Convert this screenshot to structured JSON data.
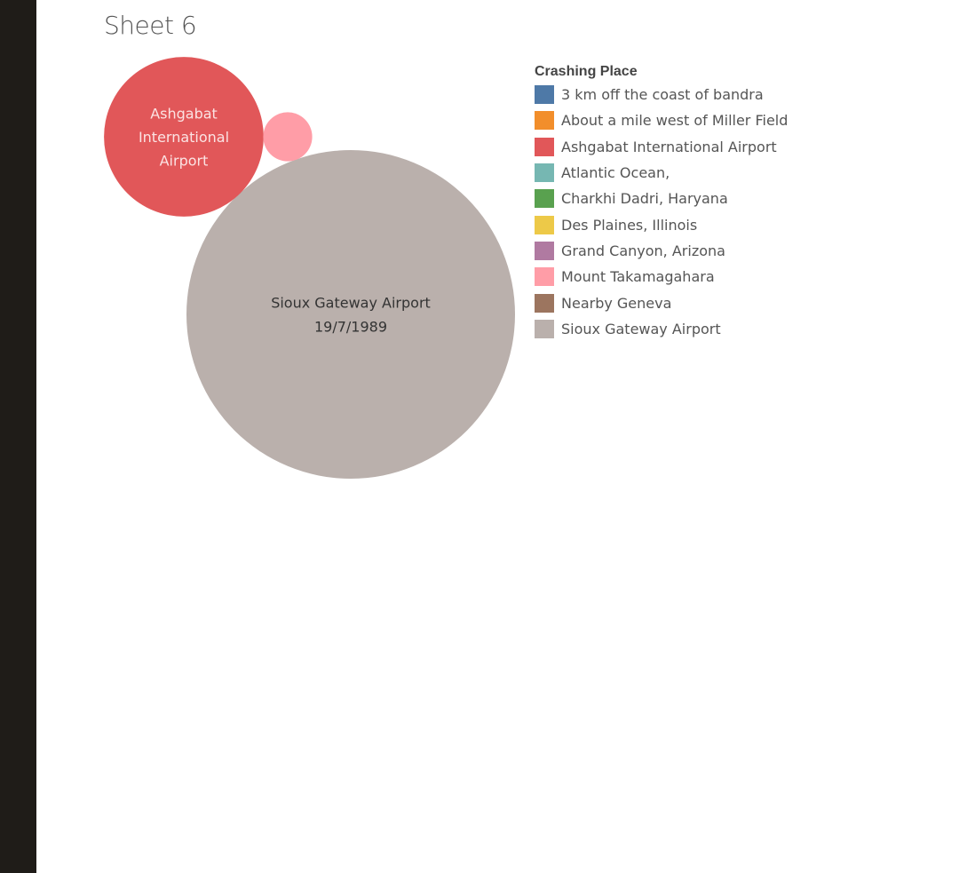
{
  "sheet": {
    "title": "Sheet 6"
  },
  "chart_data": {
    "type": "packed-bubble",
    "legend": {
      "title": "Crashing Place",
      "placement": "right",
      "items": [
        {
          "label": "3 km off the coast of bandra",
          "color": "#4e79a7"
        },
        {
          "label": "About a mile west of Miller Field",
          "color": "#f28e2b"
        },
        {
          "label": "Ashgabat International Airport",
          "color": "#e15759"
        },
        {
          "label": "Atlantic Ocean,",
          "color": "#76b7b2"
        },
        {
          "label": "Charkhi Dadri, Haryana",
          "color": "#59a14f"
        },
        {
          "label": "Des Plaines, Illinois",
          "color": "#edc948"
        },
        {
          "label": "Grand Canyon, Arizona",
          "color": "#b07aa1"
        },
        {
          "label": "Mount Takamagahara",
          "color": "#ff9da7"
        },
        {
          "label": "Nearby Geneva",
          "color": "#9c755f"
        },
        {
          "label": "Sioux Gateway Airport",
          "color": "#bab0ac"
        }
      ]
    },
    "bubbles": [
      {
        "place": "Sioux Gateway Airport",
        "label_lines": [
          "Sioux Gateway Airport",
          "19/7/1989"
        ],
        "relative_size": 1.0,
        "color": "#bab0ac",
        "label_color": "#333333"
      },
      {
        "place": "Ashgabat International Airport",
        "label_lines": [
          "Ashgabat",
          "International",
          "Airport"
        ],
        "relative_size": 0.236,
        "color": "#e15759",
        "label_color": "#fbe3e3"
      },
      {
        "place": "Mount Takamagahara",
        "label_lines": [],
        "relative_size": 0.0222,
        "color": "#ff9da7",
        "label_color": "#ffffff"
      }
    ]
  }
}
